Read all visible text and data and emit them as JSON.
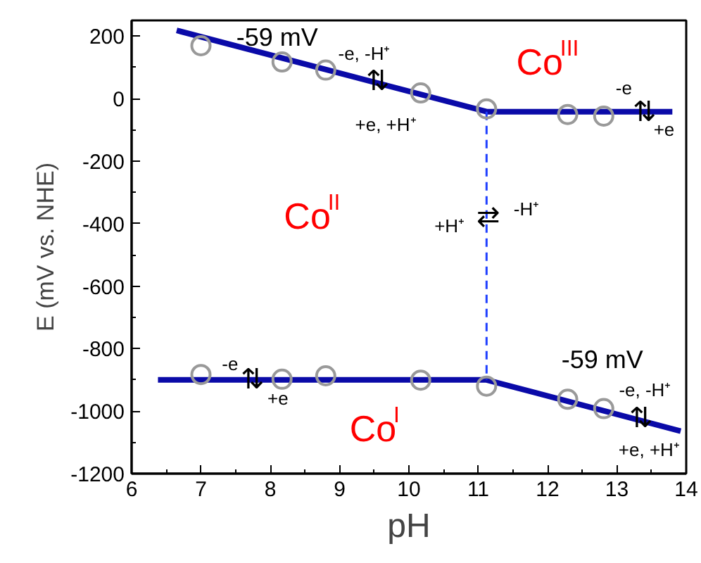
{
  "chart_data": {
    "type": "line",
    "xlabel": "pH",
    "ylabel": "E (mV vs. NHE)",
    "xlim": [
      6,
      14
    ],
    "ylim": [
      -1200,
      250
    ],
    "xticks": [
      6,
      7,
      8,
      9,
      10,
      11,
      12,
      13,
      14
    ],
    "yticks": [
      -1200,
      -1000,
      -800,
      -600,
      -400,
      -200,
      0,
      200
    ],
    "grid": false,
    "series": [
      {
        "color": "#0a0aa8",
        "line_style": "solid",
        "x": [
          6.65,
          11.12,
          13.8
        ],
        "values": [
          218,
          -42,
          -42
        ]
      },
      {
        "color": "#0a0aa8",
        "line_style": "solid",
        "x": [
          6.38,
          11.12,
          13.92
        ],
        "values": [
          -900,
          -900,
          -1064
        ]
      },
      {
        "color": "#1f3fff",
        "line_style": "dashed",
        "x": [
          11.12,
          11.12
        ],
        "values": [
          -42,
          -900
        ]
      },
      {
        "type": "scatter",
        "color": "#999999",
        "marker": "circle",
        "x": [
          7.0,
          8.17,
          8.8,
          10.17,
          11.12,
          12.29,
          12.81,
          7.0,
          8.17,
          8.8,
          10.17,
          11.12,
          12.29,
          12.81
        ],
        "values": [
          169,
          117,
          91,
          18,
          -33,
          -51,
          -56,
          -883,
          -898,
          -887,
          -901,
          -920,
          -962,
          -992
        ]
      }
    ],
    "annotations": [
      "-59 mV",
      "-e, -H⁺",
      "⇅",
      "+e, +H⁺",
      "Co$^{III}$",
      "-e",
      "⇅",
      "+e",
      "Co$^{II}$",
      "+H⁺",
      "⇄",
      "-H⁺",
      "-e",
      "⇅",
      "+e",
      "-59 mV",
      "Co$^{I}$",
      "-e, -H⁺",
      "⇅",
      "+e, +H⁺"
    ]
  }
}
